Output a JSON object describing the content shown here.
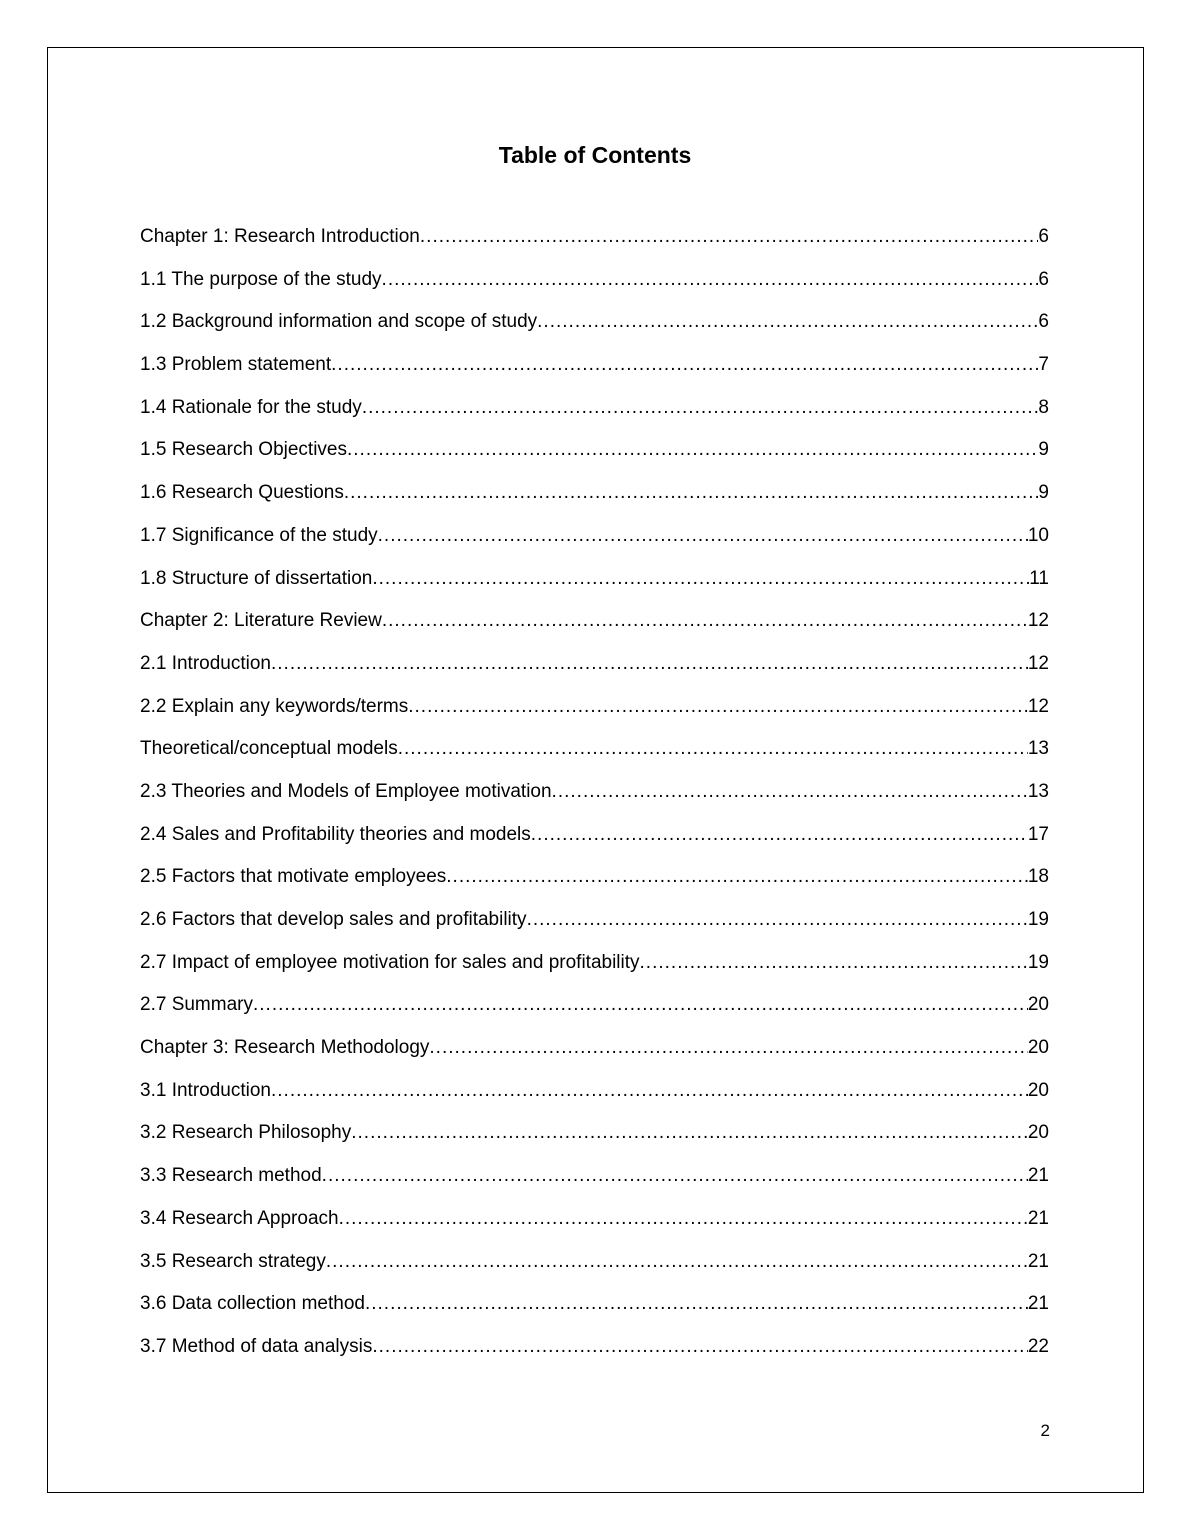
{
  "title": "Table of Contents",
  "page_number": "2",
  "entries": [
    {
      "label": "Chapter 1: Research Introduction",
      "page": "6"
    },
    {
      "label": "1.1 The purpose of the study",
      "page": "6"
    },
    {
      "label": "1.2 Background information and scope of study",
      "page": "6"
    },
    {
      "label": "1.3 Problem statement",
      "page": "7"
    },
    {
      "label": "1.4 Rationale for the study",
      "page": "8"
    },
    {
      "label": "1.5 Research Objectives",
      "page": "9"
    },
    {
      "label": "1.6 Research Questions",
      "page": "9"
    },
    {
      "label": "1.7 Significance of the study",
      "page": "10"
    },
    {
      "label": "1.8 Structure of dissertation",
      "page": "11"
    },
    {
      "label": "Chapter 2: Literature Review",
      "page": "12"
    },
    {
      "label": "2.1 Introduction",
      "page": "12"
    },
    {
      "label": "2.2 Explain any keywords/terms",
      "page": "12"
    },
    {
      "label": "Theoretical/conceptual models",
      "page": "13"
    },
    {
      "label": "2.3 Theories and Models of Employee motivation",
      "page": "13"
    },
    {
      "label": "2.4 Sales and Profitability theories and models",
      "page": "17"
    },
    {
      "label": "2.5 Factors that motivate employees",
      "page": "18"
    },
    {
      "label": "2.6 Factors that develop sales and profitability",
      "page": "19"
    },
    {
      "label": "2.7 Impact of employee motivation for sales and profitability",
      "page": "19"
    },
    {
      "label": "2.7 Summary",
      "page": "20"
    },
    {
      "label": "Chapter 3: Research Methodology",
      "page": "20"
    },
    {
      "label": "3.1 Introduction",
      "page": "20"
    },
    {
      "label": "3.2 Research Philosophy",
      "page": "20"
    },
    {
      "label": "3.3 Research method",
      "page": "21"
    },
    {
      "label": "3.4 Research Approach",
      "page": "21"
    },
    {
      "label": "3.5 Research strategy",
      "page": "21"
    },
    {
      "label": "3.6 Data collection method",
      "page": "21"
    },
    {
      "label": "3.7 Method of data analysis",
      "page": "22"
    }
  ]
}
